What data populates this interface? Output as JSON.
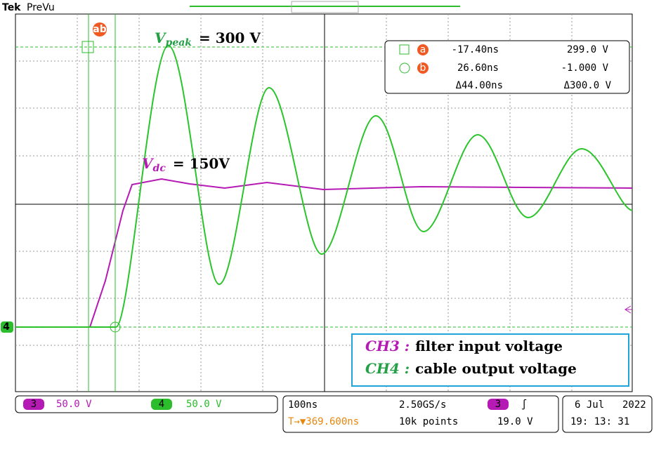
{
  "header": {
    "brand": "Tek",
    "mode": "PreVu"
  },
  "cursor_tag": "ab",
  "annotations": {
    "vpeak": {
      "symbol": "V",
      "sub": "peak",
      "rest": "= 300 V"
    },
    "vdc": {
      "symbol": "V",
      "sub": "dc",
      "rest": "= 150V"
    }
  },
  "readout": {
    "rows": [
      {
        "tag": "a",
        "time": "-17.40ns",
        "volt": "299.0 V"
      },
      {
        "tag": "b",
        "time": "26.60ns",
        "volt": "-1.000 V"
      },
      {
        "time": "Δ44.00ns",
        "volt": "Δ300.0 V"
      }
    ]
  },
  "legend": [
    {
      "ch": "CH3 :",
      "text": "filter input voltage"
    },
    {
      "ch": "CH4 :",
      "text": "cable output voltage"
    }
  ],
  "channel_marker": "4",
  "status": {
    "ch3": {
      "num": "3",
      "scale": "50.0 V"
    },
    "ch4": {
      "num": "4",
      "scale": "50.0 V"
    },
    "timebase": "100ns",
    "rate": "2.50GS/s",
    "trig_pos": "T→▼369.600ns",
    "points": "10k points",
    "trig_ch": "3",
    "trig_slope": "∫",
    "trig_level": "19.0 V",
    "date": "6 Jul",
    "year": "2022",
    "time": "19: 13: 31"
  }
}
